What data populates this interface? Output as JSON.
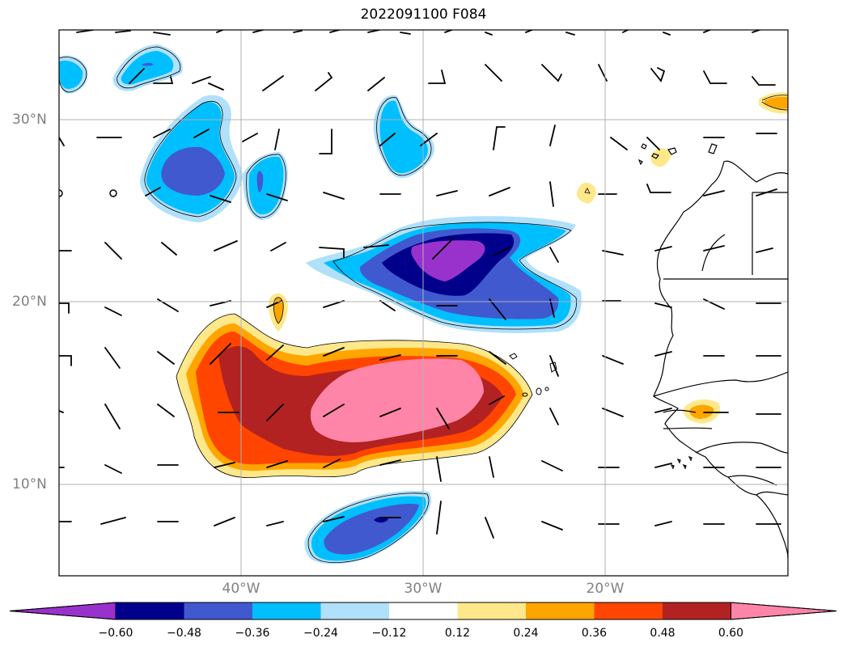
{
  "title": "2022091100 F084",
  "lat_labels": [
    "30°N",
    "20°N",
    "10°N"
  ],
  "lon_labels": [
    "40°W",
    "30°W",
    "20°W"
  ],
  "colorbar": {
    "labels": [
      "−0.60",
      "−0.48",
      "−0.36",
      "−0.24",
      "−0.12",
      "0.12",
      "0.24",
      "0.36",
      "0.48",
      "0.60"
    ],
    "colors": [
      "#9932cc",
      "#00008b",
      "#4159cf",
      "#00bfff",
      "#b0e0fa",
      "#ffffff",
      "#ffe88a",
      "#ffa500",
      "#ff4500",
      "#b22222",
      "#ff85a8"
    ]
  },
  "colors": {
    "grid": "#b0b0b0",
    "coast": "#000000",
    "barb": "#000000"
  }
}
